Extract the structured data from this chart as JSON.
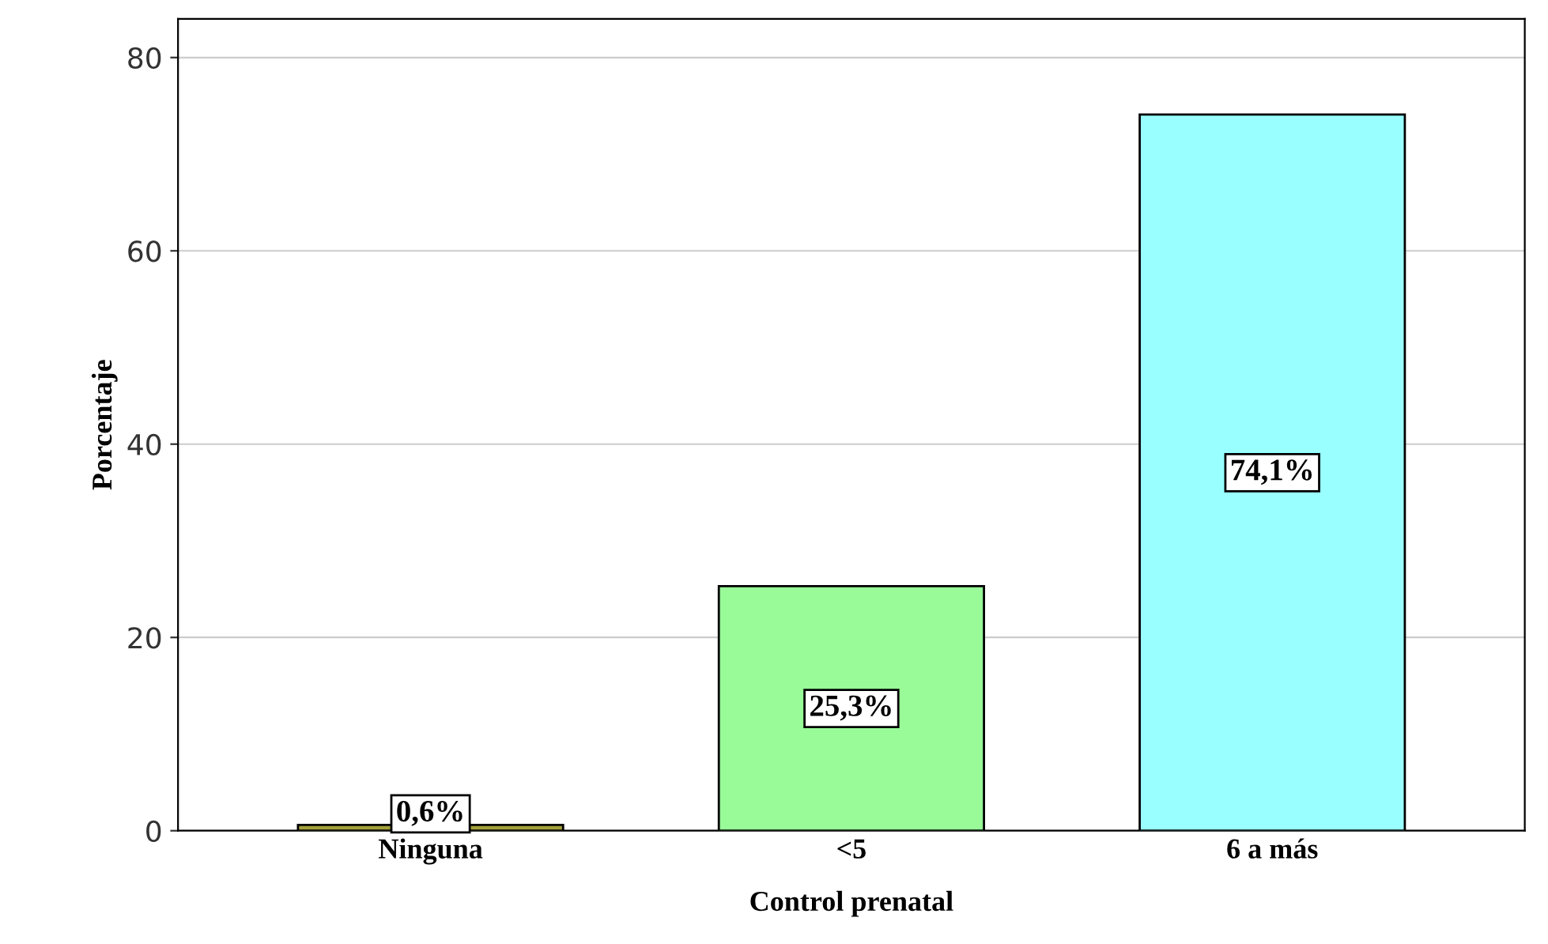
{
  "chart_data": {
    "type": "bar",
    "xlabel": "Control prenatal",
    "ylabel": "Porcentaje",
    "categories": [
      "Ninguna",
      "<5",
      "6 a más"
    ],
    "values": [
      0.6,
      25.3,
      74.1
    ],
    "colors": [
      "#a3a03c",
      "#98fb98",
      "#99ffff"
    ],
    "value_labels": [
      "0,6%",
      "25,3%",
      "74,1%"
    ],
    "ylim": [
      0,
      84
    ],
    "yticks": [
      0,
      20,
      40,
      60,
      80
    ],
    "grid": "y"
  }
}
